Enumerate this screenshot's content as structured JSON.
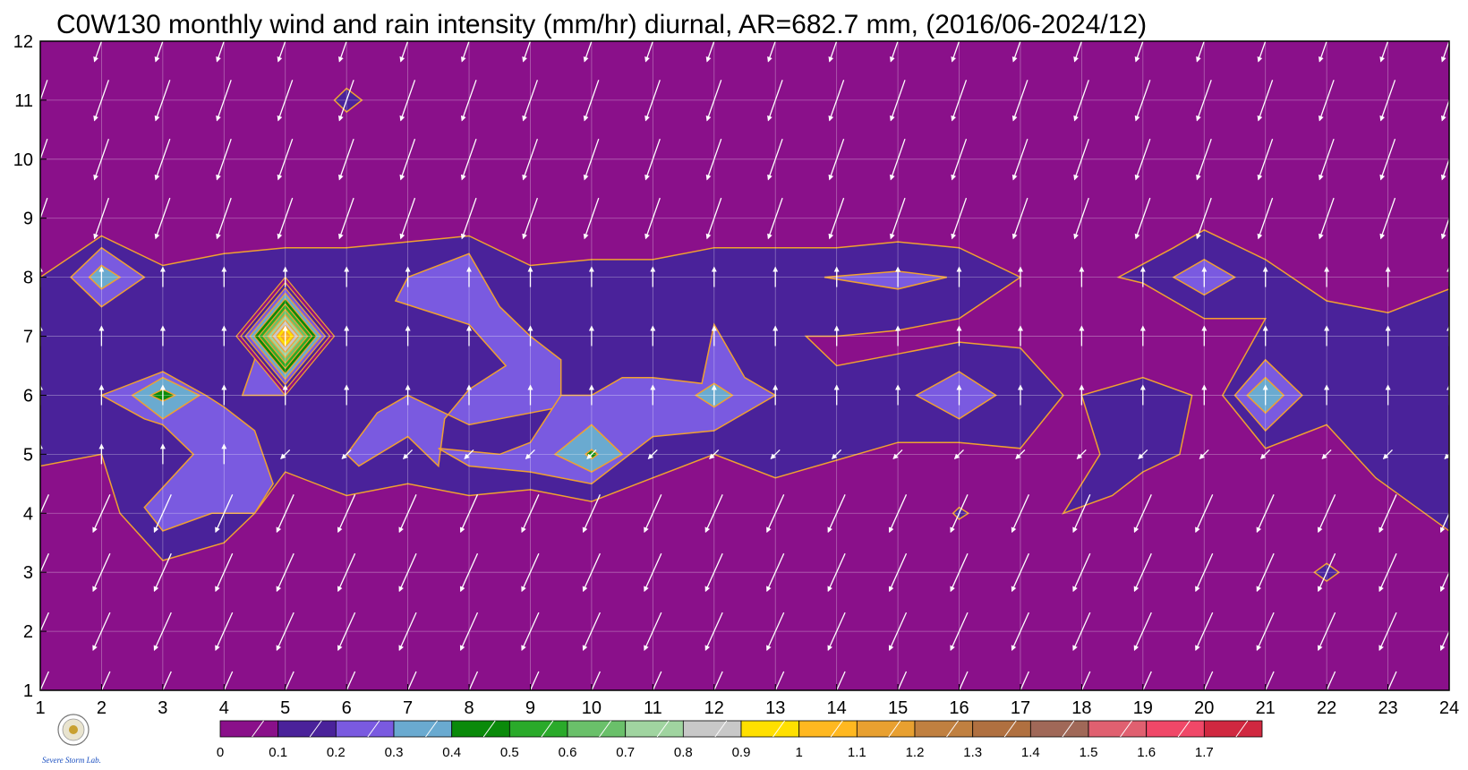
{
  "chart_data": {
    "type": "heatmap",
    "title": "C0W130 monthly wind and rain intensity (mm/hr) diurnal, AR=682.7 mm, (2016/06-2024/12)",
    "xlabel": "",
    "ylabel": "",
    "x_ticks": [
      "1",
      "2",
      "3",
      "4",
      "5",
      "6",
      "7",
      "8",
      "9",
      "10",
      "11",
      "12",
      "13",
      "14",
      "15",
      "16",
      "17",
      "18",
      "19",
      "20",
      "21",
      "22",
      "23",
      "24"
    ],
    "y_ticks": [
      "1",
      "2",
      "3",
      "4",
      "5",
      "6",
      "7",
      "8",
      "9",
      "10",
      "11",
      "12"
    ],
    "xlim": [
      1,
      24
    ],
    "ylim": [
      1,
      12
    ],
    "grid": true,
    "background_color": "#8a108a",
    "contour_line_color": "#f0a030",
    "arrow_color": "#ffffff",
    "colorbar": {
      "levels": [
        "0",
        "0.1",
        "0.2",
        "0.3",
        "0.4",
        "0.5",
        "0.6",
        "0.7",
        "0.8",
        "0.9",
        "1",
        "1.1",
        "1.2",
        "1.3",
        "1.4",
        "1.5",
        "1.6",
        "1.7"
      ],
      "colors": [
        "#8a108a",
        "#4a229a",
        "#7a5ae0",
        "#6aaad0",
        "#0a8a0a",
        "#2aaa2a",
        "#6ac06a",
        "#a0d4a0",
        "#c8c8c8",
        "#ffe000",
        "#ffb820",
        "#e8a030",
        "#c08040",
        "#b07040",
        "#a06858",
        "#e06070",
        "#f04868",
        "#d02840"
      ]
    },
    "rain_regions": [
      {
        "level": 0.1,
        "points": [
          [
            1,
            8
          ],
          [
            2,
            8.7
          ],
          [
            3,
            8.2
          ],
          [
            4,
            8.4
          ],
          [
            5,
            8.5
          ],
          [
            6,
            8.5
          ],
          [
            7,
            8.6
          ],
          [
            8,
            8.7
          ],
          [
            9,
            8.2
          ],
          [
            10,
            8.3
          ],
          [
            11,
            8.3
          ],
          [
            12,
            8.5
          ],
          [
            13,
            8.5
          ],
          [
            14,
            8.5
          ],
          [
            15,
            8.6
          ],
          [
            16,
            8.5
          ],
          [
            17,
            8
          ],
          [
            16,
            7.3
          ],
          [
            15,
            7.1
          ],
          [
            14,
            7
          ],
          [
            13.5,
            7
          ],
          [
            14,
            6.5
          ],
          [
            15,
            6.7
          ],
          [
            16,
            6.9
          ],
          [
            17,
            6.8
          ],
          [
            17.7,
            6
          ],
          [
            17,
            5.1
          ],
          [
            16,
            5.2
          ],
          [
            15,
            5.2
          ],
          [
            14,
            4.9
          ],
          [
            13,
            4.6
          ],
          [
            12,
            5
          ],
          [
            11,
            4.6
          ],
          [
            10,
            4.2
          ],
          [
            9,
            4.4
          ],
          [
            8,
            4.3
          ],
          [
            7,
            4.5
          ],
          [
            6,
            4.3
          ],
          [
            5,
            4.7
          ],
          [
            4.5,
            4
          ],
          [
            4,
            3.5
          ],
          [
            3,
            3.2
          ],
          [
            2.3,
            4
          ],
          [
            2,
            5
          ],
          [
            1,
            4.8
          ]
        ]
      },
      {
        "level": 0.1,
        "points": [
          [
            18.6,
            8
          ],
          [
            19.5,
            8.5
          ],
          [
            20,
            8.8
          ],
          [
            21,
            8.3
          ],
          [
            22,
            7.6
          ],
          [
            23,
            7.4
          ],
          [
            24,
            7.8
          ],
          [
            24,
            3.7
          ],
          [
            22.8,
            4.6
          ],
          [
            22,
            5.5
          ],
          [
            21,
            5.1
          ],
          [
            20.3,
            6
          ],
          [
            21,
            7.3
          ],
          [
            20,
            7.3
          ],
          [
            19,
            7.9
          ]
        ]
      },
      {
        "level": 0.1,
        "points": [
          [
            17.7,
            4
          ],
          [
            18.3,
            5
          ],
          [
            18,
            6
          ],
          [
            19,
            6.3
          ],
          [
            19.8,
            6
          ],
          [
            19.6,
            5
          ],
          [
            19,
            4.7
          ],
          [
            18.5,
            4.3
          ]
        ]
      },
      {
        "level": 0.2,
        "points": [
          [
            1.5,
            8
          ],
          [
            2,
            8.5
          ],
          [
            2.7,
            8
          ],
          [
            2,
            7.5
          ]
        ]
      },
      {
        "level": 0.2,
        "points": [
          [
            2,
            6
          ],
          [
            3,
            6.4
          ],
          [
            3.7,
            6
          ],
          [
            4,
            5.8
          ],
          [
            4.5,
            5.4
          ],
          [
            4.8,
            4.5
          ],
          [
            4.5,
            4
          ],
          [
            3.8,
            4
          ],
          [
            3,
            3.7
          ],
          [
            2.7,
            4.1
          ],
          [
            3.5,
            5
          ],
          [
            3,
            5.5
          ],
          [
            2.7,
            5.6
          ]
        ]
      },
      {
        "level": 0.2,
        "points": [
          [
            4.3,
            6
          ],
          [
            4.5,
            6.6
          ],
          [
            4.5,
            7.2
          ],
          [
            5,
            7.5
          ],
          [
            5.2,
            6.5
          ],
          [
            5,
            6
          ]
        ]
      },
      {
        "level": 0.2,
        "points": [
          [
            6,
            5
          ],
          [
            6.5,
            5.7
          ],
          [
            7,
            6
          ],
          [
            8,
            5.5
          ],
          [
            9,
            5.7
          ],
          [
            9.5,
            5.8
          ],
          [
            9.5,
            6.6
          ],
          [
            9,
            7
          ],
          [
            8.5,
            7.5
          ],
          [
            8,
            8.4
          ],
          [
            7,
            8
          ],
          [
            6.8,
            7.6
          ],
          [
            8,
            7.2
          ],
          [
            8.6,
            6.5
          ],
          [
            8,
            6.1
          ],
          [
            7.6,
            5.6
          ],
          [
            7.5,
            4.8
          ],
          [
            7,
            5.3
          ],
          [
            6.2,
            4.8
          ]
        ]
      },
      {
        "level": 0.2,
        "points": [
          [
            9.5,
            6
          ],
          [
            10,
            6
          ],
          [
            10.5,
            6.3
          ],
          [
            11,
            6.3
          ],
          [
            11.8,
            6.2
          ],
          [
            12,
            7.2
          ],
          [
            12.5,
            6.3
          ],
          [
            13,
            6
          ],
          [
            12,
            5.4
          ],
          [
            11,
            5.3
          ],
          [
            10,
            4.5
          ],
          [
            9,
            4.7
          ],
          [
            8,
            4.8
          ],
          [
            7.5,
            5.1
          ],
          [
            8.5,
            5
          ],
          [
            9,
            5.2
          ]
        ]
      },
      {
        "level": 0.2,
        "points": [
          [
            13.8,
            8
          ],
          [
            15,
            8.1
          ],
          [
            15.8,
            8
          ],
          [
            15,
            7.8
          ]
        ]
      },
      {
        "level": 0.2,
        "points": [
          [
            15.3,
            6
          ],
          [
            16,
            6.4
          ],
          [
            16.6,
            6
          ],
          [
            16,
            5.6
          ]
        ]
      },
      {
        "level": 0.2,
        "points": [
          [
            19.5,
            8
          ],
          [
            20,
            8.3
          ],
          [
            20.5,
            8
          ],
          [
            20,
            7.7
          ]
        ]
      },
      {
        "level": 0.2,
        "points": [
          [
            20.5,
            6
          ],
          [
            21,
            6.6
          ],
          [
            21.6,
            6
          ],
          [
            21,
            5.4
          ]
        ]
      },
      {
        "level": 0.3,
        "points": [
          [
            1.8,
            8
          ],
          [
            2,
            8.2
          ],
          [
            2.3,
            8
          ],
          [
            2,
            7.8
          ]
        ]
      },
      {
        "level": 0.3,
        "points": [
          [
            2.5,
            6
          ],
          [
            3,
            6.3
          ],
          [
            3.6,
            6
          ],
          [
            3,
            5.6
          ]
        ]
      },
      {
        "level": 0.3,
        "points": [
          [
            9.4,
            5
          ],
          [
            10,
            5.5
          ],
          [
            10.5,
            5
          ],
          [
            10,
            4.7
          ]
        ]
      },
      {
        "level": 0.3,
        "points": [
          [
            11.7,
            6
          ],
          [
            12,
            6.2
          ],
          [
            12.3,
            6
          ],
          [
            12,
            5.8
          ]
        ]
      },
      {
        "level": 0.3,
        "points": [
          [
            20.7,
            6
          ],
          [
            21,
            6.3
          ],
          [
            21.3,
            6
          ],
          [
            21,
            5.7
          ]
        ]
      },
      {
        "level": 0.4,
        "points": [
          [
            2.8,
            6
          ],
          [
            3,
            6.1
          ],
          [
            3.2,
            6
          ],
          [
            3,
            5.9
          ]
        ]
      },
      {
        "level": 0.4,
        "points": [
          [
            9.9,
            5
          ],
          [
            10,
            5.08
          ],
          [
            10.1,
            5
          ],
          [
            10,
            4.92
          ]
        ]
      },
      {
        "level": 0.1,
        "points": [
          [
            5.8,
            11
          ],
          [
            6,
            11.2
          ],
          [
            6.25,
            11
          ],
          [
            6,
            10.8
          ]
        ]
      },
      {
        "level": 0.1,
        "points": [
          [
            15.9,
            4
          ],
          [
            16,
            4.1
          ],
          [
            16.15,
            4
          ],
          [
            16,
            3.9
          ]
        ]
      },
      {
        "level": 0.1,
        "points": [
          [
            21.8,
            3
          ],
          [
            22,
            3.15
          ],
          [
            22.2,
            3
          ],
          [
            22,
            2.85
          ]
        ]
      }
    ],
    "peak": {
      "x": 5,
      "y": 7,
      "value": 1.0
    },
    "wind_vectors_note": "arrows sampled on every integer hour (x) and month (y)",
    "wind": {
      "u_top": -0.35,
      "v_top": -1.0,
      "u_mid": 0.0,
      "v_mid": 1.0,
      "u_low": -0.45,
      "v_low": -1.0
    }
  },
  "footer": {
    "logo_text": "Severe Storm Lab."
  }
}
